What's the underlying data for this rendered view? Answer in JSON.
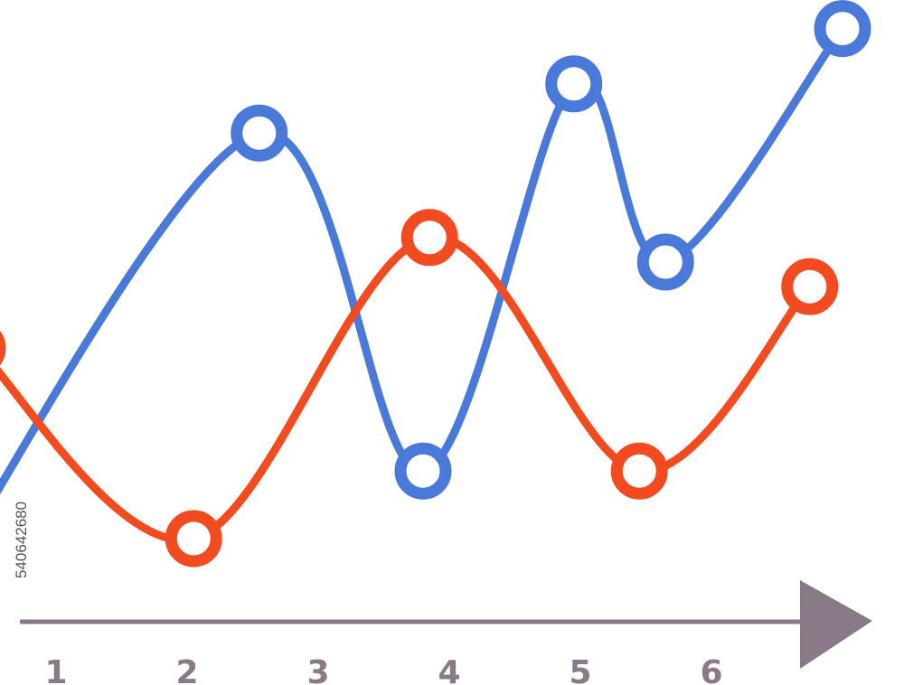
{
  "chart_data": {
    "type": "line",
    "x": [
      1,
      2,
      3,
      4,
      5,
      6
    ],
    "x_tick_labels": [
      "1",
      "2",
      "3",
      "4",
      "5",
      "6"
    ],
    "ylim": [
      0,
      10
    ],
    "grid": false,
    "legend": "none",
    "series": [
      {
        "color": "#4a7ad9",
        "points": [
          {
            "x": 0.1,
            "y": 0.7
          },
          {
            "x": 2.55,
            "y": 8.1
          },
          {
            "x": 3.8,
            "y": 2.6
          },
          {
            "x": 4.95,
            "y": 8.9
          },
          {
            "x": 5.65,
            "y": 6.0
          },
          {
            "x": 7.0,
            "y": 9.8
          }
        ]
      },
      {
        "color": "#f24b1f",
        "points": [
          {
            "x": 0.4,
            "y": 4.6
          },
          {
            "x": 2.05,
            "y": 1.5
          },
          {
            "x": 3.85,
            "y": 6.4
          },
          {
            "x": 5.45,
            "y": 2.6
          },
          {
            "x": 6.75,
            "y": 5.6
          }
        ]
      }
    ],
    "axis_color": "#8a7a87"
  },
  "side_id": "540642680"
}
